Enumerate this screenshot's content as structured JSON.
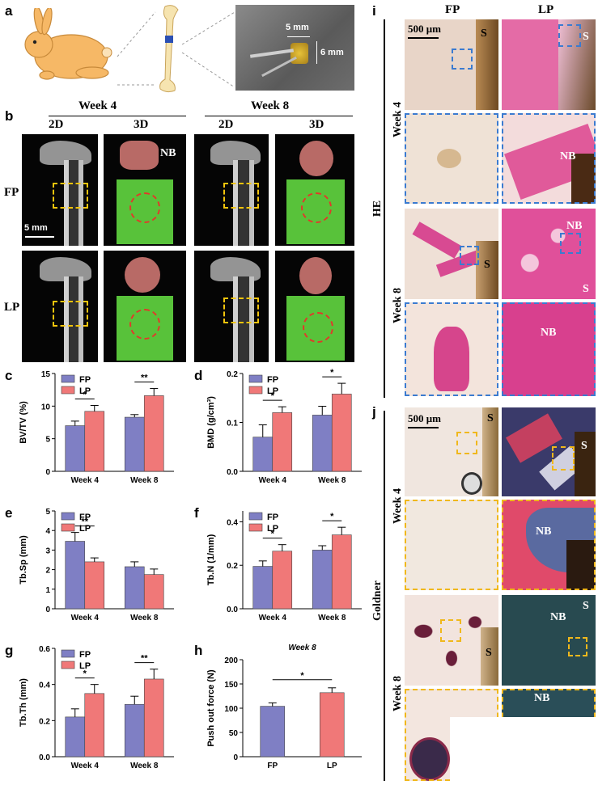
{
  "panel_labels": {
    "a": "a",
    "b": "b",
    "c": "c",
    "d": "d",
    "e": "e",
    "f": "f",
    "g": "g",
    "h": "h",
    "i": "i",
    "j": "j"
  },
  "panel_a": {
    "scale_w": "5 mm",
    "scale_h": "6 mm"
  },
  "panel_b": {
    "week4": "Week 4",
    "week8": "Week 8",
    "d2": "2D",
    "d3": "3D",
    "row_fp": "FP",
    "row_lp": "LP",
    "nb": "NB",
    "scale": "5 mm"
  },
  "panel_i": {
    "col_fp": "FP",
    "col_lp": "LP",
    "scale": "500 μm",
    "stain": "HE",
    "week4": "Week 4",
    "week8": "Week 8",
    "s": "S",
    "nb": "NB"
  },
  "panel_j": {
    "scale": "500 μm",
    "stain": "Goldner",
    "week4": "Week 4",
    "week8": "Week 8",
    "s": "S",
    "nb": "NB"
  },
  "colors": {
    "fp": "#7f7fc4",
    "lp": "#f07878"
  },
  "chart_data": [
    {
      "id": "c",
      "type": "bar",
      "categories": [
        "Week 4",
        "Week 8"
      ],
      "series": [
        {
          "name": "FP",
          "values": [
            7.0,
            8.3
          ],
          "errors": [
            0.7,
            0.4
          ]
        },
        {
          "name": "LP",
          "values": [
            9.2,
            11.6
          ],
          "errors": [
            0.9,
            1.1
          ]
        }
      ],
      "ylabel": "BV/TV (%)",
      "ylim": [
        0,
        15
      ],
      "yticks": [
        0,
        5,
        10,
        15
      ],
      "sig": [
        {
          "cat": 0,
          "label": "*"
        },
        {
          "cat": 1,
          "label": "**"
        }
      ]
    },
    {
      "id": "d",
      "type": "bar",
      "categories": [
        "Week 4",
        "Week 8"
      ],
      "series": [
        {
          "name": "FP",
          "values": [
            0.07,
            0.115
          ],
          "errors": [
            0.025,
            0.018
          ]
        },
        {
          "name": "LP",
          "values": [
            0.12,
            0.158
          ],
          "errors": [
            0.012,
            0.022
          ]
        }
      ],
      "ylabel": "BMD (g/cm³)",
      "ylim": [
        0,
        0.2
      ],
      "yticks": [
        "0.0",
        "0.1",
        "0.2"
      ],
      "sig": [
        {
          "cat": 0,
          "label": "*"
        },
        {
          "cat": 1,
          "label": "*"
        }
      ]
    },
    {
      "id": "e",
      "type": "bar",
      "categories": [
        "Week 4",
        "Week 8"
      ],
      "series": [
        {
          "name": "FP",
          "values": [
            3.45,
            2.15
          ],
          "errors": [
            0.45,
            0.25
          ]
        },
        {
          "name": "LP",
          "values": [
            2.4,
            1.75
          ],
          "errors": [
            0.2,
            0.28
          ]
        }
      ],
      "ylabel": "Tb.Sp (mm)",
      "ylim": [
        0,
        5
      ],
      "yticks": [
        0,
        1,
        2,
        3,
        4,
        5
      ],
      "sig": [
        {
          "cat": 0,
          "label": "**"
        }
      ]
    },
    {
      "id": "f",
      "type": "bar",
      "categories": [
        "Week 4",
        "Week 8"
      ],
      "series": [
        {
          "name": "FP",
          "values": [
            0.195,
            0.27
          ],
          "errors": [
            0.025,
            0.02
          ]
        },
        {
          "name": "LP",
          "values": [
            0.265,
            0.34
          ],
          "errors": [
            0.03,
            0.035
          ]
        }
      ],
      "ylabel": "Tb.N (1/mm)",
      "ylim": [
        0,
        0.45
      ],
      "yticks": [
        "0.0",
        "0.2",
        "0.4"
      ],
      "sig": [
        {
          "cat": 0,
          "label": "*"
        },
        {
          "cat": 1,
          "label": "*"
        }
      ]
    },
    {
      "id": "g",
      "type": "bar",
      "categories": [
        "Week 4",
        "Week 8"
      ],
      "series": [
        {
          "name": "FP",
          "values": [
            0.22,
            0.29
          ],
          "errors": [
            0.045,
            0.045
          ]
        },
        {
          "name": "LP",
          "values": [
            0.35,
            0.43
          ],
          "errors": [
            0.05,
            0.055
          ]
        }
      ],
      "ylabel": "Tb.Th (mm)",
      "ylim": [
        0,
        0.6
      ],
      "yticks": [
        "0.0",
        "0.2",
        "0.4",
        "0.6"
      ],
      "sig": [
        {
          "cat": 0,
          "label": "*"
        },
        {
          "cat": 1,
          "label": "**"
        }
      ]
    },
    {
      "id": "h",
      "type": "bar",
      "categories": [
        "FP",
        "LP"
      ],
      "series": [
        {
          "name": "",
          "values": [
            104,
            132
          ],
          "errors": [
            7,
            10
          ]
        }
      ],
      "title": "Week 8",
      "ylabel": "Push out force (N)",
      "ylim": [
        0,
        200
      ],
      "yticks": [
        0,
        50,
        100,
        150,
        200
      ],
      "sig": [
        {
          "pair": [
            0,
            1
          ],
          "label": "*"
        }
      ]
    }
  ]
}
